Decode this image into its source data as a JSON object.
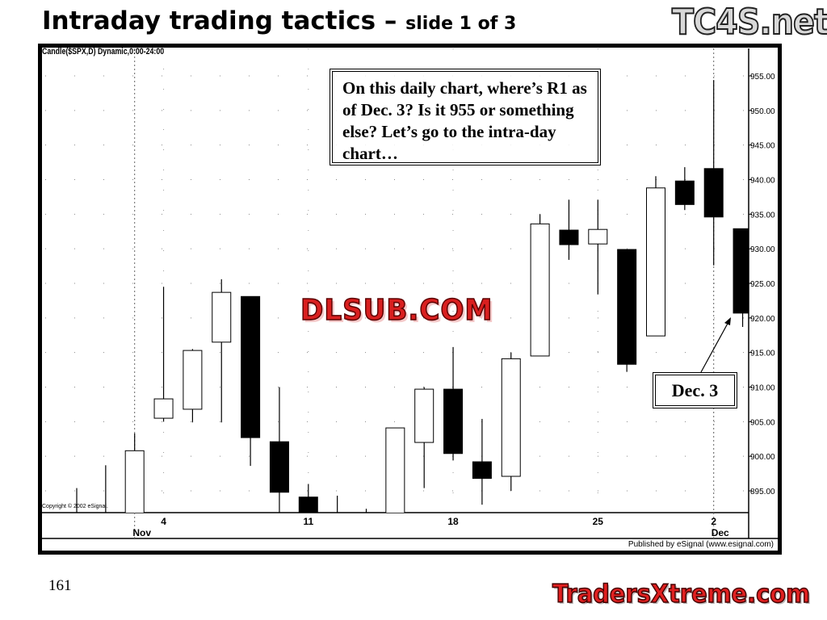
{
  "slide": {
    "title": "Intraday trading tactics –",
    "subtitle": "slide 1 of 3",
    "page_number": "161",
    "logo_top": "TC4S.net",
    "watermark": "DLSUB.COM",
    "logo_bottom": "TradersXtreme.com"
  },
  "chart_header": "Candle($SPX,D) Dynamic,0:00-24:00",
  "copyright": "Copyright © 2002 eSignal.",
  "published": "Published by eSignal (www.esignal.com)",
  "question": "On this daily chart, where’s R1 as of Dec. 3? Is it 955 or something else? Let’s go to the intra-day chart…",
  "annotation": "Dec. 3",
  "colors": {
    "up_fill": "#ffffff",
    "down_fill": "#000000",
    "frame": "#000000"
  },
  "chart_data": {
    "type": "candlestick",
    "title": "",
    "ylim": [
      892,
      959
    ],
    "y_axis_position": "right",
    "y_ticks": [
      "955.00",
      "950.00",
      "945.00",
      "940.00",
      "935.00",
      "930.00",
      "925.00",
      "920.00",
      "915.00",
      "910.00",
      "905.00",
      "900.00",
      "895.00"
    ],
    "x_tick_labels": [
      {
        "date": "Nov 4",
        "label": "4",
        "month": "Nov"
      },
      {
        "date": "Nov 11",
        "label": "11"
      },
      {
        "date": "Nov 18",
        "label": "18"
      },
      {
        "date": "Nov 25",
        "label": "25"
      },
      {
        "date": "Dec 2",
        "label": "2",
        "month": "Dec"
      }
    ],
    "grid": true,
    "candles": [
      {
        "date": "Oct 30",
        "open": 890,
        "high": 895.4,
        "low": 885,
        "close": 891
      },
      {
        "date": "Oct 31",
        "open": 890,
        "high": 898.7,
        "low": 885,
        "close": 889
      },
      {
        "date": "Nov 1",
        "open": 887,
        "high": 903.3,
        "low": 884,
        "close": 900.8
      },
      {
        "date": "Nov 4",
        "open": 905.5,
        "high": 924.5,
        "low": 905.0,
        "close": 908.3
      },
      {
        "date": "Nov 5",
        "open": 906.8,
        "high": 915.5,
        "low": 904.9,
        "close": 915.3
      },
      {
        "date": "Nov 6",
        "open": 916.5,
        "high": 925.6,
        "low": 904.9,
        "close": 923.7
      },
      {
        "date": "Nov 7",
        "open": 923.1,
        "high": 923.1,
        "low": 898.6,
        "close": 902.7
      },
      {
        "date": "Nov 8",
        "open": 902.1,
        "high": 910.0,
        "low": 890.0,
        "close": 894.8
      },
      {
        "date": "Nov 11",
        "open": 894.1,
        "high": 896.0,
        "low": 880.0,
        "close": 882.0
      },
      {
        "date": "Nov 12",
        "open": 882.0,
        "high": 894.3,
        "low": 880.0,
        "close": 886.0
      },
      {
        "date": "Nov 13",
        "open": 882.0,
        "high": 892.4,
        "low": 872.0,
        "close": 882.5
      },
      {
        "date": "Nov 14",
        "open": 891.0,
        "high": 904.1,
        "low": 890.0,
        "close": 904.1
      },
      {
        "date": "Nov 15",
        "open": 902.0,
        "high": 910.0,
        "low": 895.4,
        "close": 909.7
      },
      {
        "date": "Nov 18",
        "open": 909.7,
        "high": 915.8,
        "low": 899.4,
        "close": 900.4
      },
      {
        "date": "Nov 19",
        "open": 899.2,
        "high": 905.4,
        "low": 893.0,
        "close": 896.8
      },
      {
        "date": "Nov 20",
        "open": 897.1,
        "high": 915.0,
        "low": 895.0,
        "close": 914.1
      },
      {
        "date": "Nov 21",
        "open": 914.5,
        "high": 935.0,
        "low": 914.5,
        "close": 933.6
      },
      {
        "date": "Nov 22",
        "open": 932.7,
        "high": 937.1,
        "low": 928.4,
        "close": 930.6
      },
      {
        "date": "Nov 25",
        "open": 930.7,
        "high": 937.1,
        "low": 923.4,
        "close": 932.8
      },
      {
        "date": "Nov 26",
        "open": 929.9,
        "high": 929.9,
        "low": 912.2,
        "close": 913.3
      },
      {
        "date": "Nov 27",
        "open": 917.4,
        "high": 940.5,
        "low": 917.4,
        "close": 938.8
      },
      {
        "date": "Nov 29",
        "open": 939.8,
        "high": 941.8,
        "low": 935.6,
        "close": 936.4
      },
      {
        "date": "Dec 2",
        "open": 941.6,
        "high": 954.4,
        "low": 927.6,
        "close": 934.6
      },
      {
        "date": "Dec 3",
        "open": 932.9,
        "high": 932.9,
        "low": 918.7,
        "close": 920.7
      }
    ]
  }
}
